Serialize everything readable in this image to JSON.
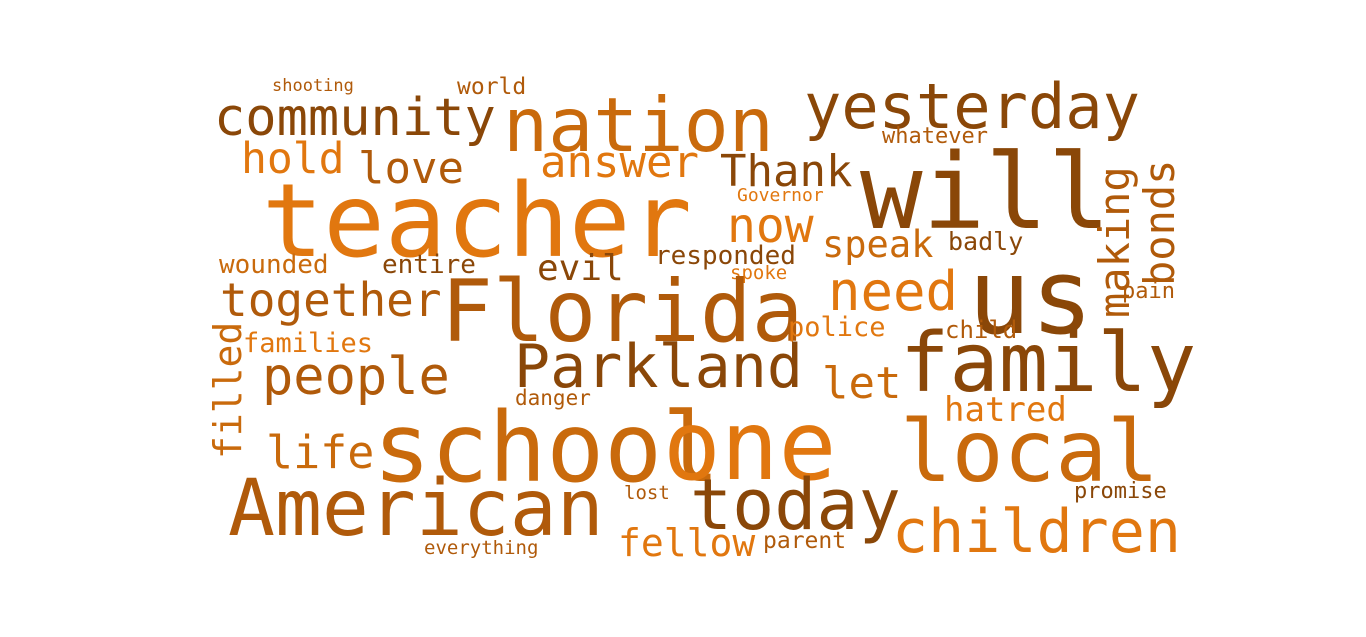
{
  "colors": {
    "c1": "#e1770f",
    "c2": "#c96a0c",
    "c3": "#b05a0a",
    "c4": "#8a4708"
  },
  "words": [
    {
      "id": "shooting",
      "text": "shooting",
      "color": "c3"
    },
    {
      "id": "world",
      "text": "world",
      "color": "c3"
    },
    {
      "id": "community",
      "text": "community",
      "color": "c4"
    },
    {
      "id": "nation",
      "text": "nation",
      "color": "c2"
    },
    {
      "id": "yesterday",
      "text": "yesterday",
      "color": "c4"
    },
    {
      "id": "whatever",
      "text": "whatever",
      "color": "c3"
    },
    {
      "id": "hold",
      "text": "hold",
      "color": "c1"
    },
    {
      "id": "love",
      "text": "love",
      "color": "c3"
    },
    {
      "id": "answer",
      "text": "answer",
      "color": "c1"
    },
    {
      "id": "thank",
      "text": "Thank",
      "color": "c4"
    },
    {
      "id": "teacher",
      "text": "teacher",
      "color": "c1"
    },
    {
      "id": "will",
      "text": "will",
      "color": "c4"
    },
    {
      "id": "governor",
      "text": "Governor",
      "color": "c1"
    },
    {
      "id": "now",
      "text": "now",
      "color": "c1"
    },
    {
      "id": "making",
      "text": "making",
      "color": "c3"
    },
    {
      "id": "bonds",
      "text": "bonds",
      "color": "c3"
    },
    {
      "id": "speak",
      "text": "speak",
      "color": "c2"
    },
    {
      "id": "badly",
      "text": "badly",
      "color": "c4"
    },
    {
      "id": "responded",
      "text": "responded",
      "color": "c4"
    },
    {
      "id": "wounded",
      "text": "wounded",
      "color": "c2"
    },
    {
      "id": "entire",
      "text": "entire",
      "color": "c4"
    },
    {
      "id": "evil",
      "text": "evil",
      "color": "c4"
    },
    {
      "id": "spoke",
      "text": "spoke",
      "color": "c1"
    },
    {
      "id": "us",
      "text": "us",
      "color": "c4"
    },
    {
      "id": "together",
      "text": "together",
      "color": "c3"
    },
    {
      "id": "florida",
      "text": "Florida",
      "color": "c3"
    },
    {
      "id": "need",
      "text": "need",
      "color": "c1"
    },
    {
      "id": "pain",
      "text": "pain",
      "color": "c3"
    },
    {
      "id": "police",
      "text": "police",
      "color": "c1"
    },
    {
      "id": "child",
      "text": "child",
      "color": "c3"
    },
    {
      "id": "filled",
      "text": "filled",
      "color": "c2"
    },
    {
      "id": "families",
      "text": "families",
      "color": "c1"
    },
    {
      "id": "parkland",
      "text": "Parkland",
      "color": "c4"
    },
    {
      "id": "family",
      "text": "family",
      "color": "c4"
    },
    {
      "id": "people",
      "text": "people",
      "color": "c3"
    },
    {
      "id": "let",
      "text": "let",
      "color": "c2"
    },
    {
      "id": "danger",
      "text": "danger",
      "color": "c3"
    },
    {
      "id": "hatred",
      "text": "hatred",
      "color": "c1"
    },
    {
      "id": "life",
      "text": "life",
      "color": "c2"
    },
    {
      "id": "school",
      "text": "school",
      "color": "c2"
    },
    {
      "id": "one",
      "text": "one",
      "color": "c1"
    },
    {
      "id": "local",
      "text": "local",
      "color": "c2"
    },
    {
      "id": "american",
      "text": "American",
      "color": "c3"
    },
    {
      "id": "today",
      "text": "today",
      "color": "c4"
    },
    {
      "id": "lost",
      "text": "lost",
      "color": "c3"
    },
    {
      "id": "promise",
      "text": "promise",
      "color": "c4"
    },
    {
      "id": "children",
      "text": "children",
      "color": "c1"
    },
    {
      "id": "fellow",
      "text": "fellow",
      "color": "c1"
    },
    {
      "id": "parent",
      "text": "parent",
      "color": "c3"
    },
    {
      "id": "everything",
      "text": "everything",
      "color": "c3"
    }
  ]
}
